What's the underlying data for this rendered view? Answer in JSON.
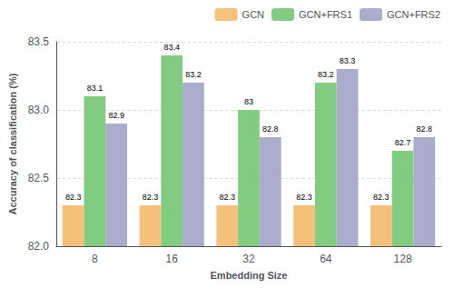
{
  "chart_data": {
    "type": "bar",
    "categories": [
      "8",
      "16",
      "32",
      "64",
      "128"
    ],
    "series": [
      {
        "name": "GCN",
        "color": "#F5C07A",
        "values": [
          82.3,
          82.3,
          82.3,
          82.3,
          82.3
        ]
      },
      {
        "name": "GCN+FRS1",
        "color": "#82CC82",
        "values": [
          83.1,
          83.4,
          83.0,
          83.2,
          82.7
        ],
        "value_labels": [
          "83.1",
          "83.4",
          "83",
          "83.2",
          "82.7"
        ]
      },
      {
        "name": "GCN+FRS2",
        "color": "#ABABCC",
        "values": [
          82.9,
          83.2,
          82.8,
          83.3,
          82.8
        ]
      }
    ],
    "xlabel": "Embedding Size",
    "ylabel": "Accuracy of classification (%)",
    "ylim": [
      82.0,
      83.5
    ],
    "yticks": [
      {
        "value": 82.0,
        "label": "82.0"
      },
      82.5,
      {
        "value": 83.0,
        "label": "83.0"
      },
      83.5
    ],
    "grid": true,
    "legend": "upper right",
    "data_labels": true
  }
}
